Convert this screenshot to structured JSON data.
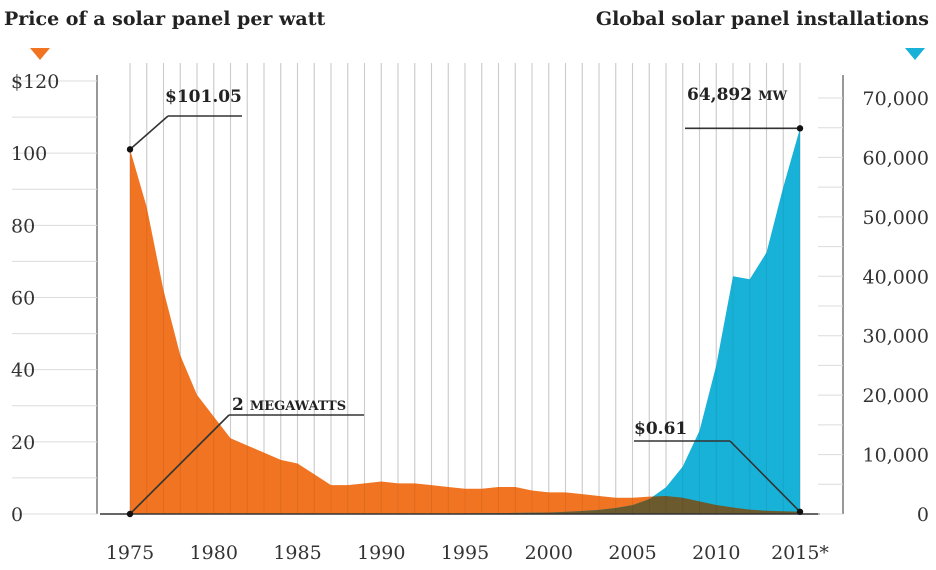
{
  "colors": {
    "price": "#f07421",
    "installations": "#18b2d8",
    "overlap": "#6b5a2e",
    "grid": "#dcdcdc",
    "axis": "#555555",
    "leader": "#333333",
    "text": "#222222"
  },
  "chart_data": {
    "type": "area",
    "title_left": "Price of a solar panel per watt",
    "title_right": "Global solar panel installations",
    "x_ticks": [
      "1975",
      "1980",
      "1985",
      "1990",
      "1995",
      "2000",
      "2005",
      "2010",
      "2015*"
    ],
    "x_tick_values": [
      1975,
      1980,
      1985,
      1990,
      1995,
      2000,
      2005,
      2010,
      2015
    ],
    "xlim": [
      1975,
      2015
    ],
    "left_axis": {
      "ticks": [
        "$120",
        "100",
        "80",
        "60",
        "40",
        "20",
        "0"
      ],
      "tick_values": [
        120,
        100,
        80,
        60,
        40,
        20,
        0
      ],
      "ylim": [
        0,
        120
      ]
    },
    "right_axis": {
      "ticks": [
        "70,000",
        "60,000",
        "50,000",
        "40,000",
        "30,000",
        "20,000",
        "10,000",
        "0"
      ],
      "tick_values": [
        70000,
        60000,
        50000,
        40000,
        30000,
        20000,
        10000,
        0
      ],
      "ylim": [
        0,
        70000
      ]
    },
    "grid": true,
    "series": [
      {
        "axis": "left",
        "x": [
          1975,
          1976,
          1977,
          1978,
          1979,
          1980,
          1981,
          1982,
          1983,
          1984,
          1985,
          1986,
          1987,
          1988,
          1989,
          1990,
          1991,
          1992,
          1993,
          1994,
          1995,
          1996,
          1997,
          1998,
          1999,
          2000,
          2001,
          2002,
          2003,
          2004,
          2005,
          2006,
          2007,
          2008,
          2009,
          2010,
          2011,
          2012,
          2013,
          2014,
          2015
        ],
        "values": [
          101.05,
          85,
          62,
          44,
          33,
          27,
          21,
          19,
          17,
          15,
          14,
          11,
          8,
          8,
          8.5,
          9,
          8.5,
          8.5,
          8,
          7.5,
          7,
          7,
          7.5,
          7.5,
          6.5,
          6,
          6,
          5.5,
          5,
          4.5,
          4.5,
          4.8,
          5,
          4.5,
          3.5,
          2.5,
          1.8,
          1.2,
          0.9,
          0.75,
          0.61
        ]
      },
      {
        "axis": "right",
        "x": [
          1975,
          1980,
          1985,
          1990,
          1995,
          2000,
          2001,
          2002,
          2003,
          2004,
          2005,
          2006,
          2007,
          2008,
          2009,
          2010,
          2011,
          2012,
          2013,
          2014,
          2015
        ],
        "values": [
          2,
          5,
          20,
          40,
          80,
          250,
          350,
          500,
          700,
          1000,
          1500,
          2500,
          4500,
          8000,
          14000,
          25000,
          40000,
          39500,
          44000,
          55000,
          64892
        ]
      }
    ],
    "annotations": [
      {
        "value": "$101.05",
        "unit": ""
      },
      {
        "value": "2",
        "unit": "MEGAWATTS"
      },
      {
        "value": "$0.61",
        "unit": ""
      },
      {
        "value": "64,892",
        "unit": "MW"
      }
    ]
  }
}
